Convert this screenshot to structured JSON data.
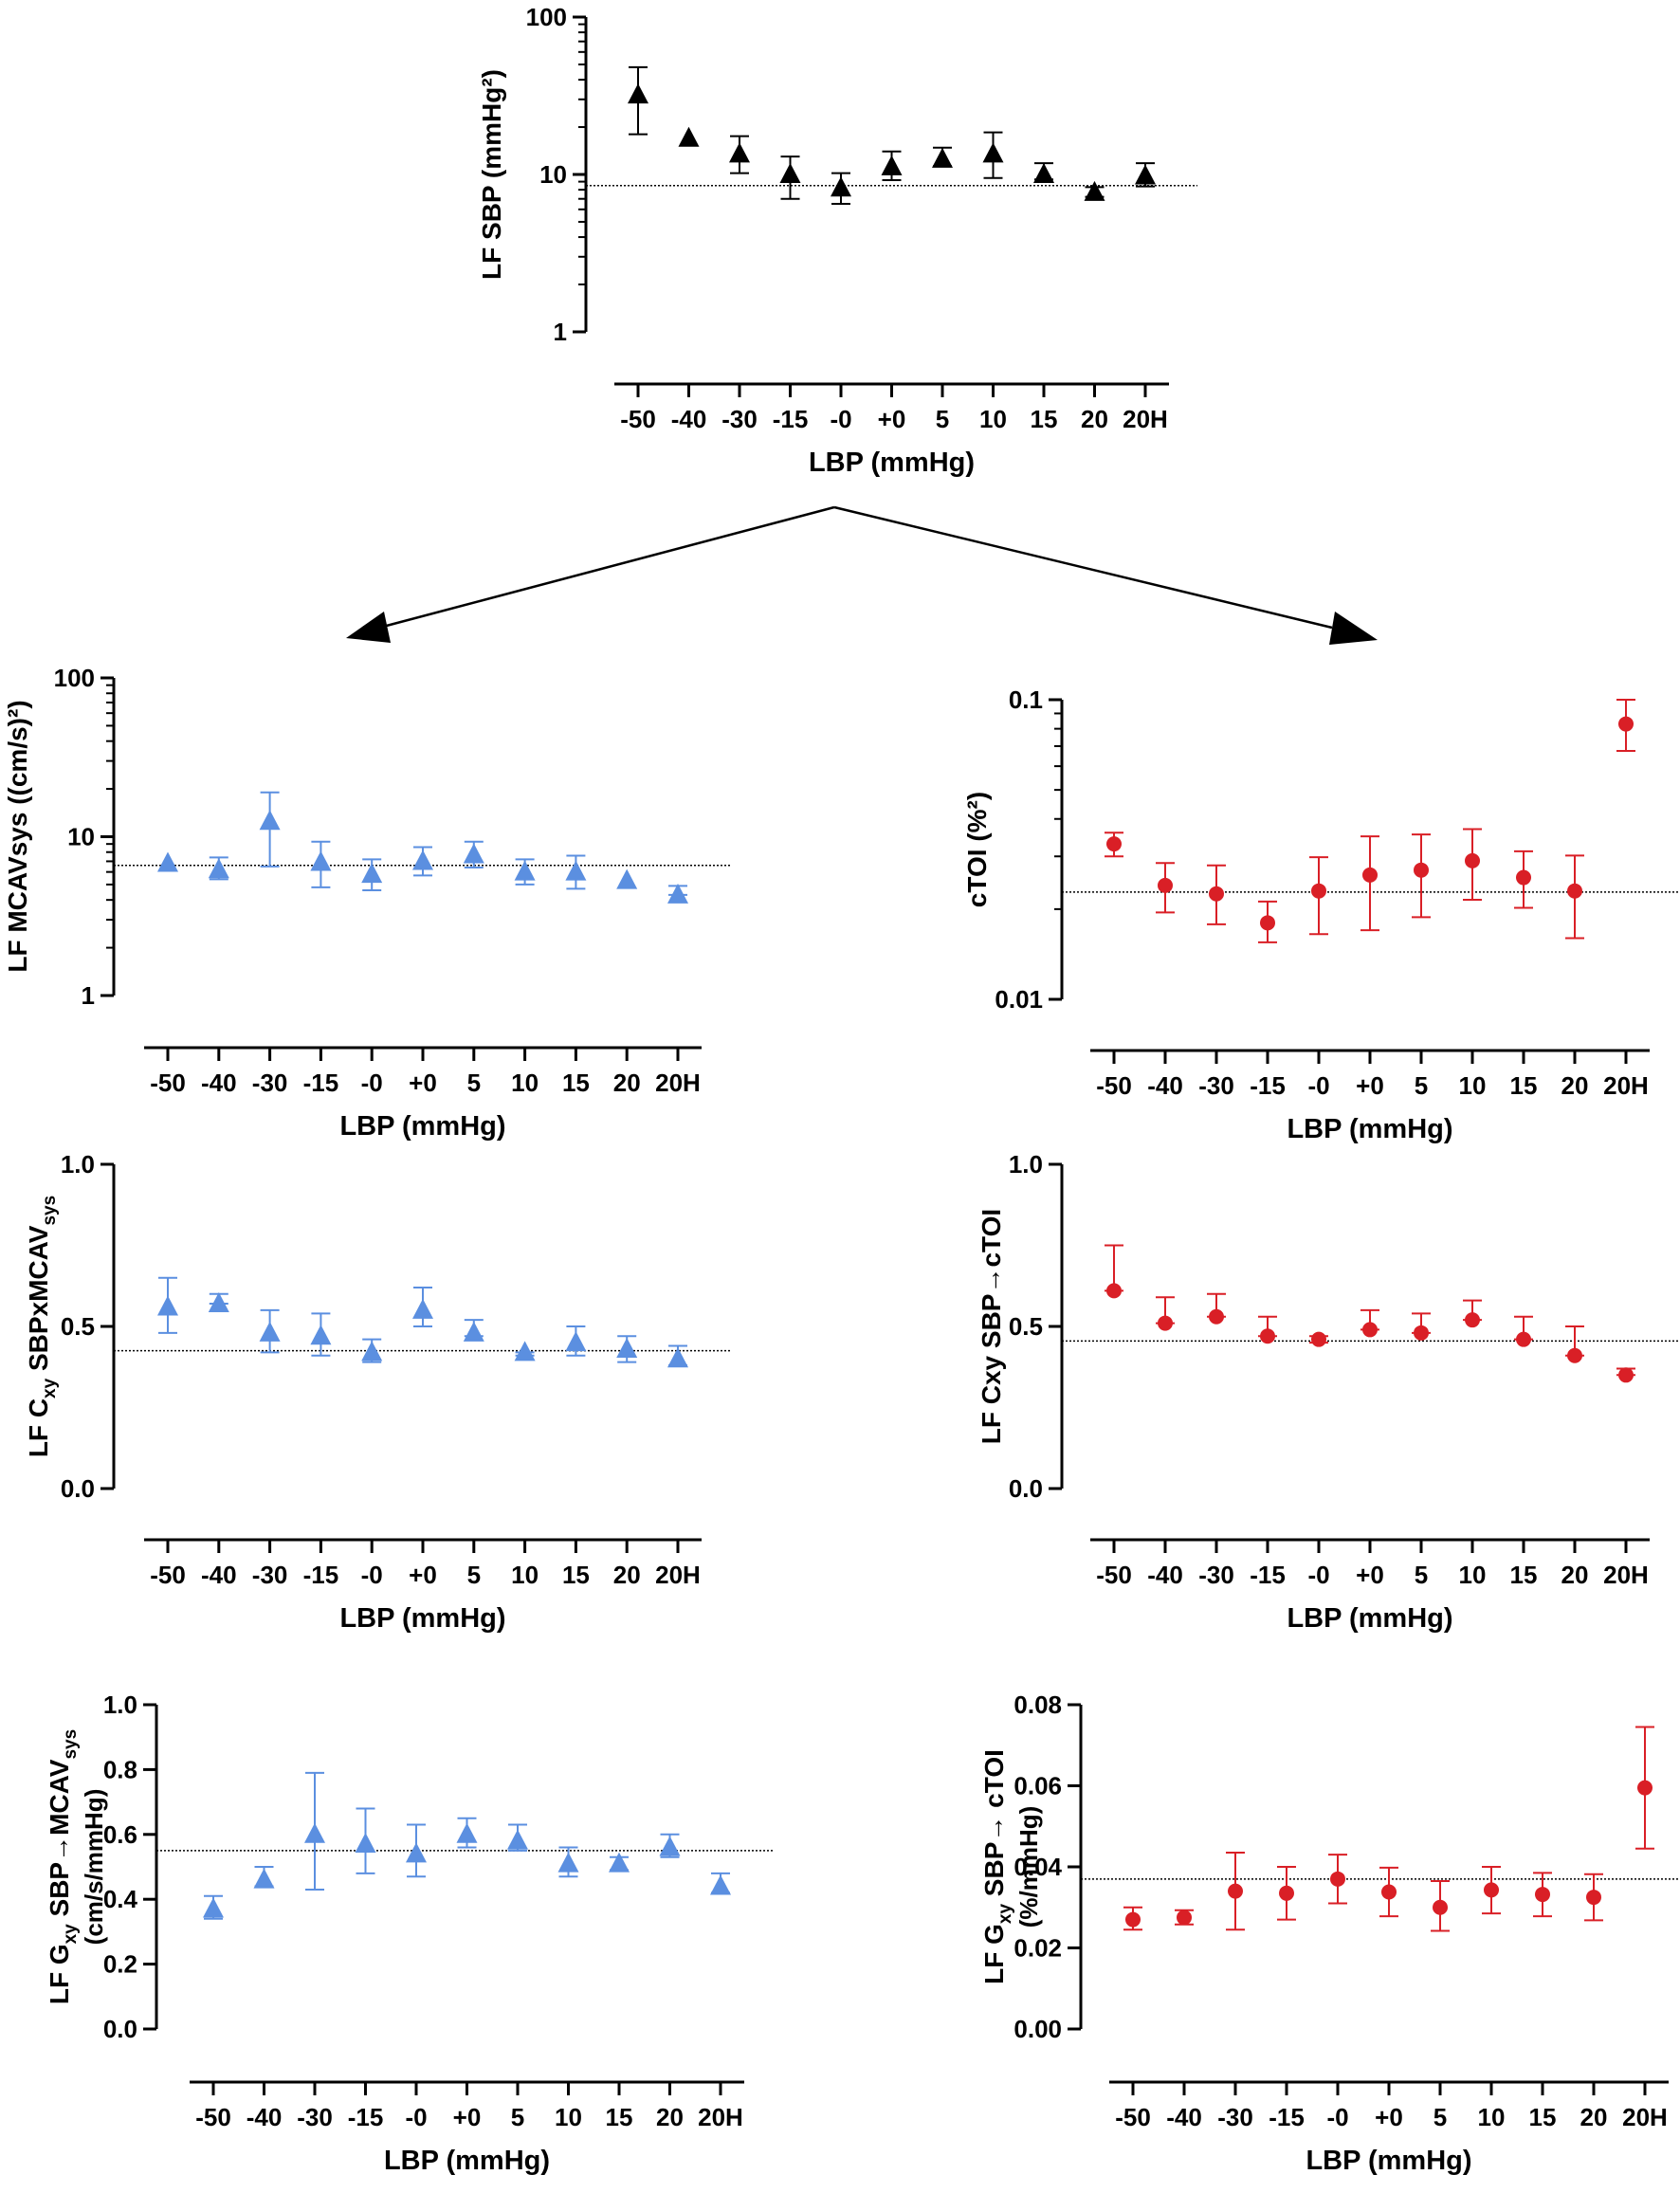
{
  "figure": {
    "categories": [
      "-50",
      "-40",
      "-30",
      "-15",
      "-0",
      "+0",
      "5",
      "10",
      "15",
      "20",
      "20H"
    ],
    "xlabel": "LBP (mmHg)",
    "colors": {
      "black": "#000000",
      "blue": "#5b8fe0",
      "red": "#d91f26"
    }
  },
  "chart_data": [
    {
      "id": "lf-sbp",
      "type": "scatter",
      "marker": "triangle",
      "color": "#000000",
      "ylabel": "LF SBP (mmHg²)",
      "xlabel": "LBP (mmHg)",
      "yscale": "log",
      "ylim": [
        1,
        100
      ],
      "yticks": [
        1,
        10,
        100
      ],
      "yticklabels": [
        "1",
        "10",
        "100"
      ],
      "categories": [
        "-50",
        "-40",
        "-30",
        "-15",
        "-0",
        "+0",
        "5",
        "10",
        "15",
        "20",
        "20H"
      ],
      "series": [
        {
          "name": "LF SBP",
          "values": [
            32,
            17,
            13.5,
            10,
            8.2,
            11.2,
            12.5,
            13.5,
            10,
            7.7,
            9.8
          ],
          "upper": [
            48,
            17,
            17.5,
            13,
            10.2,
            14,
            14.8,
            18.5,
            11.8,
            8.3,
            11.8
          ],
          "lower": [
            18,
            17,
            10.2,
            7,
            6.5,
            9.2,
            11.3,
            9.5,
            9.3,
            7.2,
            8.4
          ]
        }
      ],
      "reference_line": 8.5
    },
    {
      "id": "lf-mcav",
      "type": "scatter",
      "marker": "triangle",
      "color": "#5b8fe0",
      "ylabel": "LF MCAVsys  ((cm/s)²)",
      "xlabel": "LBP (mmHg)",
      "yscale": "log",
      "ylim": [
        1,
        100
      ],
      "yticks": [
        1,
        10,
        100
      ],
      "yticklabels": [
        "1",
        "10",
        "100"
      ],
      "categories": [
        "-50",
        "-40",
        "-30",
        "-15",
        "-0",
        "+0",
        "5",
        "10",
        "15",
        "20",
        "20H"
      ],
      "series": [
        {
          "name": "LF MCAVsys",
          "values": [
            6.8,
            6.2,
            12.5,
            6.9,
            5.8,
            7,
            7.7,
            6,
            6,
            5.3,
            4.3
          ],
          "upper": [
            6.8,
            7.4,
            19,
            9.3,
            7.2,
            8.6,
            9.3,
            7.2,
            7.6,
            5.3,
            4.9
          ],
          "lower": [
            6.8,
            5.4,
            6.5,
            4.8,
            4.6,
            5.7,
            6.4,
            5,
            4.7,
            5.3,
            4.3
          ]
        }
      ],
      "reference_line": 6.6
    },
    {
      "id": "ctoi",
      "type": "scatter",
      "marker": "circle",
      "color": "#d91f26",
      "ylabel": "cTOI (%²)",
      "xlabel": "LBP (mmHg)",
      "yscale": "log",
      "ylim": [
        0.01,
        0.1
      ],
      "yticks": [
        0.01,
        0.1
      ],
      "yticklabels": [
        "0.01",
        "0.1"
      ],
      "categories": [
        "-50",
        "-40",
        "-30",
        "-15",
        "-0",
        "+0",
        "5",
        "10",
        "15",
        "20",
        "20H"
      ],
      "series": [
        {
          "name": "cTOI",
          "values": [
            0.033,
            0.024,
            0.0225,
            0.018,
            0.023,
            0.026,
            0.027,
            0.029,
            0.0255,
            0.023,
            0.083
          ],
          "upper": [
            0.036,
            0.0285,
            0.028,
            0.0212,
            0.0298,
            0.035,
            0.0355,
            0.037,
            0.0312,
            0.0302,
            0.1
          ],
          "lower": [
            0.03,
            0.0195,
            0.0178,
            0.0155,
            0.0165,
            0.017,
            0.0188,
            0.0215,
            0.0202,
            0.016,
            0.0675
          ]
        }
      ],
      "reference_line": 0.0228
    },
    {
      "id": "lf-cxy-mcav",
      "type": "scatter",
      "marker": "triangle",
      "color": "#5b8fe0",
      "ylabel": "LF Cxy SBPxMCAVsys",
      "xlabel": "LBP (mmHg)",
      "ylabel_parts": [
        "LF C",
        "xy",
        " SBPxMCAV",
        "sys"
      ],
      "yscale": "linear",
      "ylim": [
        0,
        1
      ],
      "yticks": [
        0,
        0.5,
        1
      ],
      "yticklabels": [
        "0.0",
        "0.5",
        "1.0"
      ],
      "categories": [
        "-50",
        "-40",
        "-30",
        "-15",
        "-0",
        "+0",
        "5",
        "10",
        "15",
        "20",
        "20H"
      ],
      "series": [
        {
          "name": "LF Cxy SBPxMCAVsys",
          "values": [
            0.56,
            0.57,
            0.48,
            0.47,
            0.42,
            0.55,
            0.48,
            0.42,
            0.45,
            0.43,
            0.4
          ],
          "upper": [
            0.65,
            0.6,
            0.55,
            0.54,
            0.46,
            0.62,
            0.52,
            0.42,
            0.5,
            0.47,
            0.44
          ],
          "lower": [
            0.48,
            0.57,
            0.42,
            0.41,
            0.39,
            0.5,
            0.47,
            0.41,
            0.41,
            0.39,
            0.38
          ]
        }
      ],
      "reference_line": 0.425
    },
    {
      "id": "lf-cxy-ctoi",
      "type": "scatter",
      "marker": "circle",
      "color": "#d91f26",
      "ylabel": "LF Cxy SBP→cTOI",
      "xlabel": "LBP (mmHg)",
      "yscale": "linear",
      "ylim": [
        0,
        1
      ],
      "yticks": [
        0,
        0.5,
        1
      ],
      "yticklabels": [
        "0.0",
        "0.5",
        "1.0"
      ],
      "categories": [
        "-50",
        "-40",
        "-30",
        "-15",
        "-0",
        "+0",
        "5",
        "10",
        "15",
        "20",
        "20H"
      ],
      "series": [
        {
          "name": "LF Cxy SBP→cTOI",
          "values": [
            0.61,
            0.51,
            0.53,
            0.47,
            0.46,
            0.49,
            0.48,
            0.52,
            0.46,
            0.41,
            0.35
          ],
          "upper": [
            0.75,
            0.59,
            0.6,
            0.53,
            0.47,
            0.55,
            0.54,
            0.58,
            0.53,
            0.5,
            0.37
          ],
          "lower": [
            0.61,
            0.51,
            0.53,
            0.47,
            0.45,
            0.49,
            0.48,
            0.52,
            0.46,
            0.41,
            0.35
          ]
        }
      ],
      "reference_line": 0.455
    },
    {
      "id": "lf-gxy-mcav",
      "type": "scatter",
      "marker": "triangle",
      "color": "#5b8fe0",
      "ylabel": "LF Gxy SBP→MCAVsys (cm/s/mmHg)",
      "xlabel": "LBP (mmHg)",
      "ylabel_parts": [
        "LF G",
        "xy",
        " SBP→MCAV",
        "sys"
      ],
      "ylabel_line2": "(cm/s/mmHg)",
      "yscale": "linear",
      "ylim": [
        0,
        1
      ],
      "yticks": [
        0,
        0.2,
        0.4,
        0.6,
        0.8,
        1
      ],
      "yticklabels": [
        "0.0",
        "0.2",
        "0.4",
        "0.6",
        "0.8",
        "1.0"
      ],
      "categories": [
        "-50",
        "-40",
        "-30",
        "-15",
        "-0",
        "+0",
        "5",
        "10",
        "15",
        "20",
        "20H"
      ],
      "series": [
        {
          "name": "LF Gxy SBP→MCAVsys",
          "values": [
            0.37,
            0.46,
            0.6,
            0.57,
            0.54,
            0.6,
            0.58,
            0.51,
            0.51,
            0.56,
            0.44
          ],
          "upper": [
            0.41,
            0.5,
            0.79,
            0.68,
            0.63,
            0.65,
            0.63,
            0.56,
            0.53,
            0.6,
            0.48
          ],
          "lower": [
            0.34,
            0.44,
            0.43,
            0.48,
            0.47,
            0.56,
            0.55,
            0.47,
            0.49,
            0.53,
            0.42
          ]
        }
      ],
      "reference_line": 0.55
    },
    {
      "id": "lf-gxy-ctoi",
      "type": "scatter",
      "marker": "circle",
      "color": "#d91f26",
      "ylabel": "LF Gxy SBP→ cTOI (%/mmHg)",
      "xlabel": "LBP (mmHg)",
      "ylabel_parts": [
        "LF G",
        "xy",
        " SBP→ cTOI",
        ""
      ],
      "ylabel_line2": "(%/mmHg)",
      "yscale": "linear",
      "ylim": [
        0,
        0.08
      ],
      "yticks": [
        0,
        0.02,
        0.04,
        0.06,
        0.08
      ],
      "yticklabels": [
        "0.00",
        "0.02",
        "0.04",
        "0.06",
        "0.08"
      ],
      "categories": [
        "-50",
        "-40",
        "-30",
        "-15",
        "-0",
        "+0",
        "5",
        "10",
        "15",
        "20",
        "20H"
      ],
      "series": [
        {
          "name": "LF Gxy SBP→cTOI",
          "values": [
            0.027,
            0.0275,
            0.034,
            0.0335,
            0.037,
            0.0338,
            0.03,
            0.0343,
            0.0332,
            0.0325,
            0.0595
          ],
          "upper": [
            0.03,
            0.0293,
            0.0435,
            0.04,
            0.043,
            0.0398,
            0.0365,
            0.04,
            0.0385,
            0.0382,
            0.0745
          ],
          "lower": [
            0.0245,
            0.0258,
            0.0245,
            0.027,
            0.031,
            0.0278,
            0.0242,
            0.0285,
            0.0278,
            0.0268,
            0.0445
          ]
        }
      ],
      "reference_line": 0.037
    }
  ]
}
